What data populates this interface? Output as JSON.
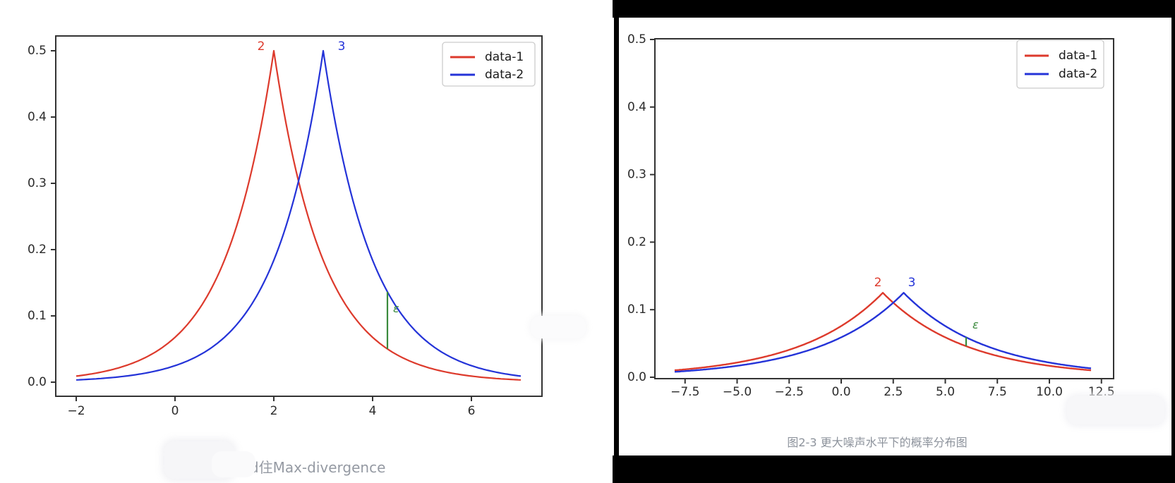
{
  "page": {
    "background": "#ffffff"
  },
  "colors": {
    "red": "#dd3a2c",
    "blue": "#2433d8",
    "green": "#3a8a3c",
    "spine": "#333333",
    "tick_text": "#2b2b2b",
    "caption_gray": "#959aa3"
  },
  "chart_data": [
    {
      "id": "left-distribution-plot",
      "type": "line",
      "caption": "bound住Max-divergence",
      "legend": {
        "position": "upper right",
        "entries": [
          {
            "label": "data-1",
            "color": "#dd3a2c"
          },
          {
            "label": "data-2",
            "color": "#2433d8"
          }
        ]
      },
      "axes": {
        "xlim": [
          -2.45,
          7.45
        ],
        "ylim": [
          -0.025,
          0.525
        ],
        "grid": false,
        "xtick_labels": [
          "−2",
          "0",
          "2",
          "4",
          "6"
        ],
        "xtick_values": [
          -2,
          0,
          2,
          4,
          6
        ],
        "ytick_labels": [
          "0.0",
          "0.1",
          "0.2",
          "0.3",
          "0.4",
          "0.5"
        ],
        "ytick_values": [
          0,
          0.1,
          0.2,
          0.3,
          0.4,
          0.5
        ]
      },
      "series": [
        {
          "name": "data-1",
          "color": "#dd3a2c",
          "distribution": "laplace_pdf",
          "mu": 2,
          "b": 1,
          "x_start": -2,
          "x_end": 7,
          "peak_label": "2",
          "peak_x": 2,
          "peak_y": 0.5,
          "sample_x": [
            -2,
            -1,
            0,
            1,
            2,
            3,
            4,
            5,
            6,
            7
          ],
          "sample_y": [
            0.0092,
            0.0249,
            0.0677,
            0.1839,
            0.5,
            0.1839,
            0.0677,
            0.0249,
            0.0092,
            0.0034
          ]
        },
        {
          "name": "data-2",
          "color": "#2433d8",
          "distribution": "laplace_pdf",
          "mu": 3,
          "b": 1,
          "x_start": -2,
          "x_end": 7,
          "peak_label": "3",
          "peak_x": 3,
          "peak_y": 0.5,
          "sample_x": [
            -2,
            -1,
            0,
            1,
            2,
            3,
            4,
            5,
            6,
            7
          ],
          "sample_y": [
            0.0034,
            0.0092,
            0.0249,
            0.0677,
            0.1839,
            0.5,
            0.1839,
            0.0677,
            0.0249,
            0.0092
          ]
        }
      ],
      "epsilon_marker": {
        "label": "ε",
        "color": "#3a8a3c",
        "x": 4.3,
        "y_from": 0.0501,
        "y_to": 0.1363
      }
    },
    {
      "id": "right-distribution-plot",
      "type": "line",
      "caption": "图2-3 更大噪声水平下的概率分布图",
      "legend": {
        "position": "upper right",
        "entries": [
          {
            "label": "data-1",
            "color": "#dd3a2c"
          },
          {
            "label": "data-2",
            "color": "#2433d8"
          }
        ]
      },
      "axes": {
        "xlim": [
          -9,
          13
        ],
        "ylim": [
          0,
          0.5
        ],
        "grid": false,
        "xtick_labels": [
          "−7.5",
          "−5.0",
          "−2.5",
          "0.0",
          "2.5",
          "5.0",
          "7.5",
          "10.0",
          "12.5"
        ],
        "xtick_values": [
          -7.5,
          -5,
          -2.5,
          0,
          2.5,
          5,
          7.5,
          10,
          12.5
        ],
        "ytick_labels": [
          "0.0",
          "0.1",
          "0.2",
          "0.3",
          "0.4",
          "0.5"
        ],
        "ytick_values": [
          0,
          0.1,
          0.2,
          0.3,
          0.4,
          0.5
        ]
      },
      "series": [
        {
          "name": "data-1",
          "color": "#dd3a2c",
          "distribution": "laplace_pdf",
          "mu": 2,
          "b": 4,
          "x_start": -8,
          "x_end": 12,
          "peak_label": "2",
          "peak_x": 2,
          "peak_y": 0.125,
          "sample_x": [
            -8,
            -6,
            -4,
            -2,
            0,
            2,
            3,
            4,
            6,
            8,
            10,
            12
          ],
          "sample_y": [
            0.0103,
            0.0169,
            0.0279,
            0.0459,
            0.0758,
            0.125,
            0.0973,
            0.0758,
            0.0459,
            0.0279,
            0.0169,
            0.0103
          ]
        },
        {
          "name": "data-2",
          "color": "#2433d8",
          "distribution": "laplace_pdf",
          "mu": 3,
          "b": 4,
          "x_start": -8,
          "x_end": 12,
          "peak_label": "3",
          "peak_x": 3,
          "peak_y": 0.125,
          "sample_x": [
            -8,
            -6,
            -4,
            -2,
            0,
            2,
            3,
            4,
            6,
            8,
            10,
            12
          ],
          "sample_y": [
            0.008,
            0.0131,
            0.0217,
            0.0358,
            0.059,
            0.0973,
            0.125,
            0.0973,
            0.059,
            0.0358,
            0.0217,
            0.0131
          ]
        }
      ],
      "epsilon_marker": {
        "label": "ε",
        "color": "#3a8a3c",
        "x": 6,
        "y_from": 0.046,
        "y_to": 0.0592
      }
    }
  ]
}
